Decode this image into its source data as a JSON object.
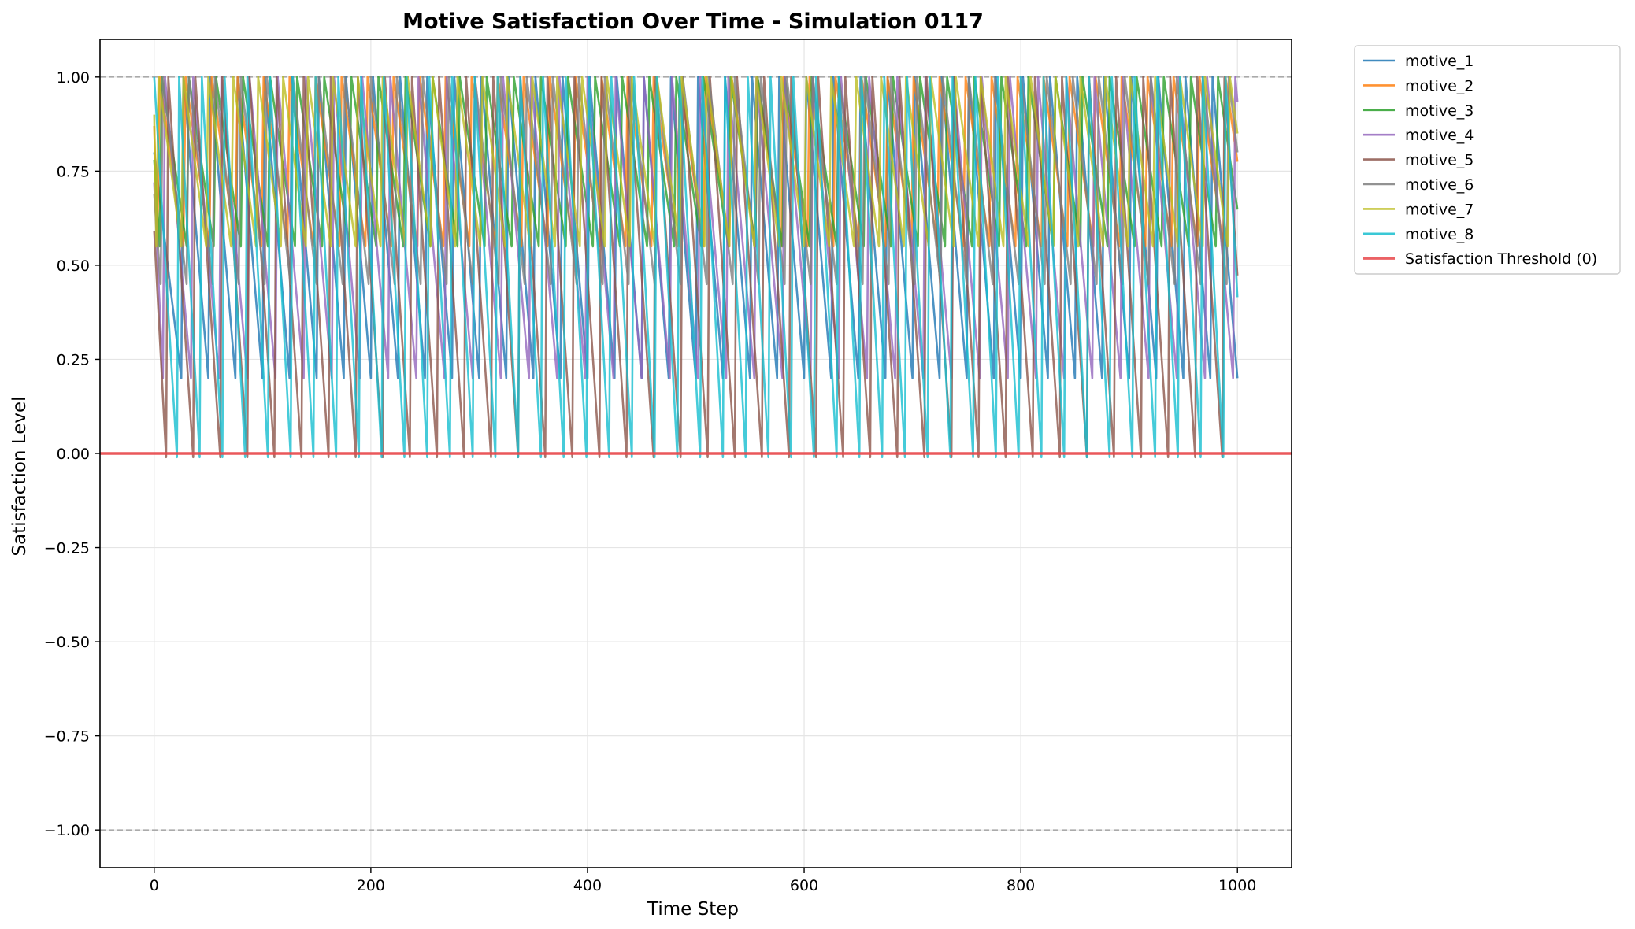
{
  "chart_data": {
    "type": "line",
    "title": "Motive Satisfaction Over Time - Simulation 0117",
    "xlabel": "Time Step",
    "ylabel": "Satisfaction Level",
    "xlim": [
      -50,
      1050
    ],
    "ylim": [
      -1.1,
      1.1
    ],
    "xticks": [
      0,
      200,
      400,
      600,
      800,
      1000
    ],
    "xtick_labels": [
      "0",
      "200",
      "400",
      "600",
      "800",
      "1000"
    ],
    "yticks": [
      1.0,
      0.75,
      0.5,
      0.25,
      0.0,
      -0.25,
      -0.5,
      -0.75,
      -1.0
    ],
    "ytick_labels": [
      "1.00",
      "0.75",
      "0.50",
      "0.25",
      "0.00",
      "−0.25",
      "−0.50",
      "−0.75",
      "−1.00"
    ],
    "grid": true,
    "legend_position": "outside-top-right",
    "reference_lines": [
      {
        "y": 1.0,
        "style": "dashed",
        "color": "#aaaaaa"
      },
      {
        "y": -1.0,
        "style": "dashed",
        "color": "#aaaaaa"
      }
    ],
    "threshold": {
      "name": "Satisfaction Threshold (0)",
      "y": 0.0,
      "color": "#e8474a"
    },
    "series": [
      {
        "name": "motive_1",
        "color": "#1f77b4",
        "period": 25,
        "phase": 0,
        "floor": 0.2,
        "start": 0.8
      },
      {
        "name": "motive_2",
        "color": "#ff7f0e",
        "period": 24,
        "phase": 3,
        "floor": 0.55,
        "start": 0.87
      },
      {
        "name": "motive_3",
        "color": "#2ca02c",
        "period": 25,
        "phase": 5,
        "floor": 0.55,
        "start": 0.78
      },
      {
        "name": "motive_4",
        "color": "#9467bd",
        "period": 26,
        "phase": 8,
        "floor": 0.2,
        "start": 0.72
      },
      {
        "name": "motive_5",
        "color": "#8c564b",
        "period": 25,
        "phase": 11,
        "floor": -0.01,
        "start": 0.59
      },
      {
        "name": "motive_6",
        "color": "#7f7f7f",
        "period": 24,
        "phase": 6,
        "floor": 0.45,
        "start": 0.69
      },
      {
        "name": "motive_7",
        "color": "#bcbd22",
        "period": 23,
        "phase": 2,
        "floor": 0.55,
        "start": 0.9
      },
      {
        "name": "motive_8",
        "color": "#17becf",
        "period": 21,
        "phase": 0,
        "floor": -0.01,
        "start": 1.0
      }
    ]
  }
}
